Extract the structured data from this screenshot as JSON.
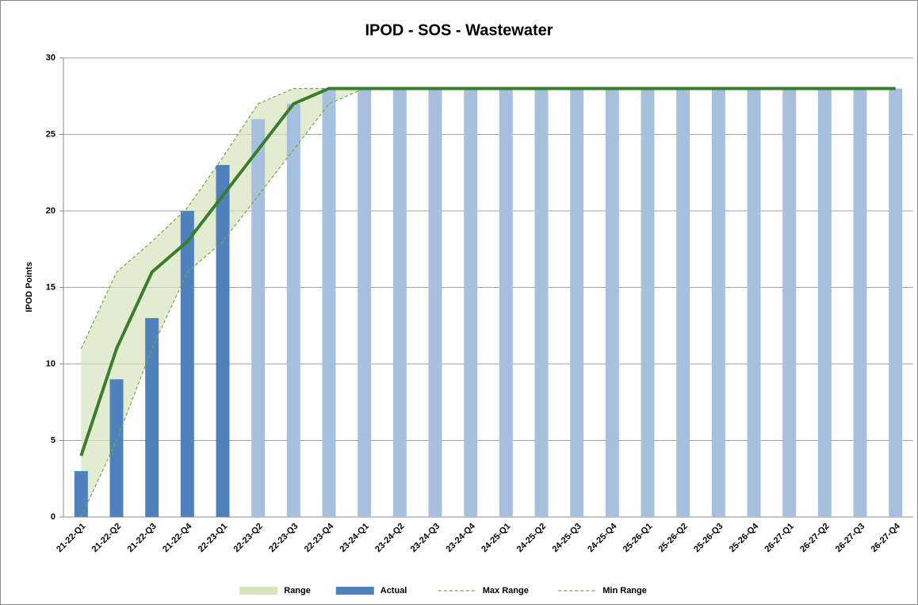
{
  "chart_data": {
    "type": "bar",
    "title": "IPOD - SOS - Wastewater",
    "y_label": "IPOD Points",
    "categories": [
      "21-22-Q1",
      "21-22-Q2",
      "21-22-Q3",
      "21-22-Q4",
      "22-23-Q1",
      "22-23-Q2",
      "22-23-Q3",
      "22-23-Q4",
      "23-24-Q1",
      "23-24-Q2",
      "23-24-Q3",
      "23-24-Q4",
      "24-25-Q1",
      "24-25-Q2",
      "24-25-Q3",
      "24-25-Q4",
      "25-26-Q1",
      "25-26-Q2",
      "25-26-Q3",
      "25-26-Q4",
      "26-27-Q1",
      "26-27-Q2",
      "26-27-Q3",
      "26-27-Q4"
    ],
    "ylim": [
      0,
      30
    ],
    "yticks": [
      0,
      5,
      10,
      15,
      20,
      25,
      30
    ],
    "grid": true,
    "legend": "bottom",
    "series": [
      {
        "name": "Range",
        "kind": "range",
        "color": "#d7e4bd"
      },
      {
        "name": "Actual",
        "kind": "bar",
        "color": "#4f81bd",
        "values": [
          3,
          9,
          13,
          20,
          23,
          null,
          null,
          null,
          null,
          null,
          null,
          null,
          null,
          null,
          null,
          null,
          null,
          null,
          null,
          null,
          null,
          null,
          null,
          null
        ]
      },
      {
        "name": "Max Range",
        "kind": "dashed",
        "color": "#77a83a",
        "values": [
          11,
          16,
          18,
          20.2,
          23.5,
          27,
          28,
          28,
          28,
          28,
          28,
          28,
          28,
          28,
          28,
          28,
          28,
          28,
          28,
          28,
          28,
          28,
          28,
          28
        ]
      },
      {
        "name": "Min Range",
        "kind": "dashed",
        "color": "#77a83a",
        "values": [
          0,
          5,
          11,
          16,
          18,
          21,
          24,
          27,
          28,
          28,
          28,
          28,
          28,
          28,
          28,
          28,
          28,
          28,
          28,
          28,
          28,
          28,
          28,
          28
        ]
      },
      {
        "kind": "bar",
        "color": "#a7c0de",
        "values": [
          null,
          null,
          null,
          null,
          null,
          26,
          27,
          28,
          28,
          28,
          28,
          28,
          28,
          28,
          28,
          28,
          28,
          28,
          28,
          28,
          28,
          28,
          28,
          28
        ]
      },
      {
        "kind": "line",
        "color": "#3a7d2c",
        "values": [
          4,
          11,
          16,
          18,
          21,
          24,
          27,
          28,
          28,
          28,
          28,
          28,
          28,
          28,
          28,
          28,
          28,
          28,
          28,
          28,
          28,
          28,
          28,
          28
        ]
      }
    ]
  }
}
